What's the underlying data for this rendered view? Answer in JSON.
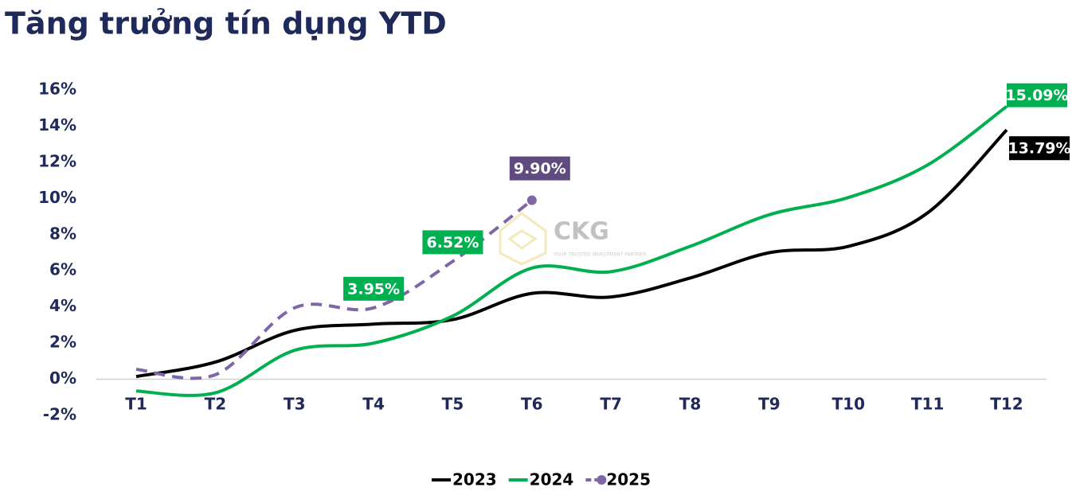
{
  "chart_data": {
    "type": "line",
    "title": "Tăng trưởng tín dụng YTD",
    "watermark": {
      "logo": "CKG",
      "tagline": "YOUR TRUSTED INVESTMENT PARTNER"
    },
    "categories": [
      "T1",
      "T2",
      "T3",
      "T4",
      "T5",
      "T6",
      "T7",
      "T8",
      "T9",
      "T10",
      "T11",
      "T12"
    ],
    "ylim": [
      -2,
      16
    ],
    "yticks": [
      {
        "value": -2,
        "label": "-2%"
      },
      {
        "value": 0,
        "label": "0%"
      },
      {
        "value": 2,
        "label": "2%"
      },
      {
        "value": 4,
        "label": "4%"
      },
      {
        "value": 6,
        "label": "6%"
      },
      {
        "value": 8,
        "label": "8%"
      },
      {
        "value": 10,
        "label": "10%"
      },
      {
        "value": 12,
        "label": "12%"
      },
      {
        "value": 14,
        "label": "14%"
      },
      {
        "value": 16,
        "label": "16%"
      }
    ],
    "grid": false,
    "legend": "bottom",
    "series": [
      {
        "name": "2023",
        "color": "#000000",
        "dashed": false,
        "marker_last": false,
        "values": [
          0.15,
          0.95,
          2.7,
          3.05,
          3.3,
          4.75,
          4.55,
          5.6,
          7.0,
          7.35,
          9.2,
          13.79
        ],
        "value_labels": [
          null,
          null,
          null,
          null,
          null,
          null,
          null,
          null,
          null,
          null,
          null,
          "13.79%"
        ],
        "label_colors": [
          null,
          null,
          null,
          null,
          null,
          null,
          null,
          null,
          null,
          null,
          null,
          "#000000"
        ]
      },
      {
        "name": "2024",
        "color": "#00b050",
        "dashed": false,
        "marker_last": false,
        "values": [
          -0.65,
          -0.75,
          1.6,
          2.0,
          3.5,
          6.15,
          5.95,
          7.35,
          9.1,
          10.05,
          11.85,
          15.09
        ],
        "value_labels": [
          null,
          null,
          null,
          null,
          null,
          null,
          null,
          null,
          null,
          null,
          null,
          "15.09%"
        ],
        "label_colors": [
          null,
          null,
          null,
          null,
          null,
          null,
          null,
          null,
          null,
          null,
          null,
          "#00b050"
        ]
      },
      {
        "name": "2025",
        "color": "#7f66a6",
        "dashed": true,
        "marker_last": true,
        "values": [
          0.55,
          0.25,
          3.95,
          3.95,
          6.52,
          9.9,
          null,
          null,
          null,
          null,
          null,
          null
        ],
        "value_labels": [
          null,
          null,
          null,
          "3.95%",
          "6.52%",
          "9.90%",
          null,
          null,
          null,
          null,
          null,
          null
        ],
        "label_colors": [
          null,
          null,
          null,
          "#00b050",
          "#00b050",
          "#5f4b80",
          null,
          null,
          null,
          null,
          null,
          null
        ]
      }
    ]
  }
}
